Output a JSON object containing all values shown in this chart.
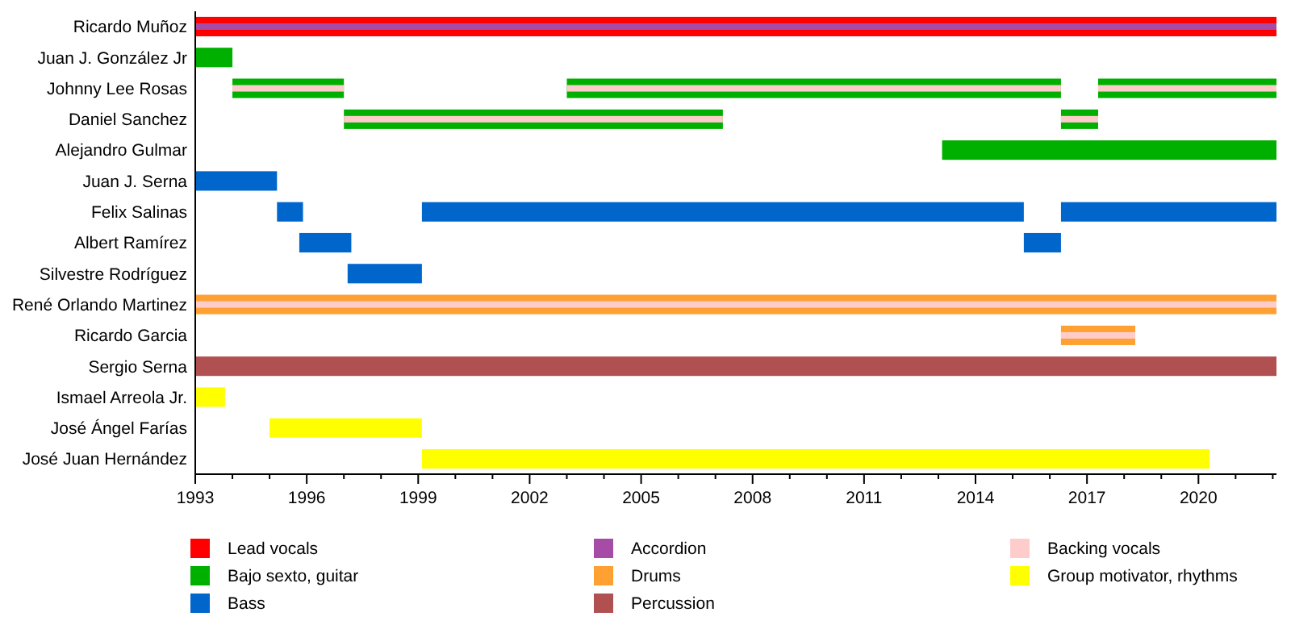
{
  "chart_data": {
    "type": "bar",
    "orientation": "horizontal",
    "categories": [
      "Ricardo Muñoz",
      "Juan J. González Jr",
      "Johnny Lee Rosas",
      "Daniel Sanchez",
      "Alejandro Gulmar",
      "Juan J. Serna",
      "Felix Salinas",
      "Albert Ramírez",
      "Silvestre Rodríguez",
      "René Orlando Martinez",
      "Ricardo Garcia",
      "Sergio Serna",
      "Ismael Arreola Jr.",
      "José Ángel Farías",
      "José Juan Hernández"
    ],
    "xlim": [
      1993,
      2022.1
    ],
    "xticks": [
      1993,
      {
        "value": 1994,
        "label": null
      },
      {
        "value": 1995,
        "label": null
      },
      1996,
      {
        "value": 1997,
        "label": null
      },
      {
        "value": 1998,
        "label": null
      },
      1999,
      {
        "value": 2000,
        "label": null
      },
      {
        "value": 2001,
        "label": null
      },
      2002,
      {
        "value": 2003,
        "label": null
      },
      {
        "value": 2004,
        "label": null
      },
      2005,
      {
        "value": 2006,
        "label": null
      },
      {
        "value": 2007,
        "label": null
      },
      2008,
      {
        "value": 2009,
        "label": null
      },
      {
        "value": 2010,
        "label": null
      },
      2011,
      {
        "value": 2012,
        "label": null
      },
      {
        "value": 2013,
        "label": null
      },
      2014,
      {
        "value": 2015,
        "label": null
      },
      {
        "value": 2016,
        "label": null
      },
      2017,
      {
        "value": 2018,
        "label": null
      },
      {
        "value": 2019,
        "label": null
      },
      2020,
      {
        "value": 2021,
        "label": null
      },
      {
        "value": 2022,
        "label": null
      }
    ],
    "legend": "bottom",
    "series": [
      {
        "name": "Lead vocals",
        "color": "#ff0000",
        "base": [
          1993,
          null,
          null,
          null,
          null,
          null,
          null,
          null,
          null,
          null,
          null,
          null,
          null,
          null,
          null
        ],
        "values": [
          29.1,
          null,
          null,
          null,
          null,
          null,
          null,
          null,
          null,
          null,
          null,
          null,
          null,
          null,
          null
        ]
      },
      {
        "name": "Bajo sexto, guitar",
        "color": "#00b000",
        "base": [
          null,
          1993,
          1994,
          1997,
          2013.1,
          null,
          null,
          null,
          null,
          null,
          null,
          null,
          null,
          null,
          null
        ],
        "values": [
          null,
          1.0,
          3.0,
          10.2,
          9.0,
          null,
          null,
          null,
          null,
          null,
          null,
          null,
          null,
          null,
          null
        ]
      },
      {
        "color": "#00b000",
        "base": [
          null,
          null,
          2003,
          2016.3,
          null,
          null,
          null,
          null,
          null,
          null,
          null,
          null,
          null,
          null,
          null
        ],
        "values": [
          null,
          null,
          13.3,
          1.0,
          null,
          null,
          null,
          null,
          null,
          null,
          null,
          null,
          null,
          null,
          null
        ]
      },
      {
        "color": "#00b000",
        "base": [
          null,
          null,
          2017.3,
          null,
          null,
          null,
          null,
          null,
          null,
          null,
          null,
          null,
          null,
          null,
          null
        ],
        "values": [
          null,
          null,
          4.8,
          null,
          null,
          null,
          null,
          null,
          null,
          null,
          null,
          null,
          null,
          null,
          null
        ]
      },
      {
        "name": "Bass",
        "color": "#0066cc",
        "base": [
          null,
          null,
          null,
          null,
          null,
          1993,
          1995.2,
          1995.8,
          1997.1,
          null,
          null,
          null,
          null,
          null,
          null
        ],
        "values": [
          null,
          null,
          null,
          null,
          null,
          2.2,
          0.7,
          1.4,
          2.0,
          null,
          null,
          null,
          null,
          null,
          null
        ]
      },
      {
        "color": "#0066cc",
        "base": [
          null,
          null,
          null,
          null,
          null,
          null,
          1999.1,
          2015.3,
          null,
          null,
          null,
          null,
          null,
          null,
          null
        ],
        "values": [
          null,
          null,
          null,
          null,
          null,
          null,
          16.2,
          1.0,
          null,
          null,
          null,
          null,
          null,
          null,
          null
        ]
      },
      {
        "color": "#0066cc",
        "base": [
          null,
          null,
          null,
          null,
          null,
          null,
          2016.3,
          null,
          null,
          null,
          null,
          null,
          null,
          null,
          null
        ],
        "values": [
          null,
          null,
          null,
          null,
          null,
          null,
          5.8,
          null,
          null,
          null,
          null,
          null,
          null,
          null,
          null
        ]
      },
      {
        "name": "Accordion",
        "color": "#a64ca6",
        "base": [
          1993,
          null,
          null,
          null,
          null,
          null,
          null,
          null,
          null,
          null,
          null,
          null,
          null,
          null,
          null
        ],
        "values": [
          29.1,
          null,
          null,
          null,
          null,
          null,
          null,
          null,
          null,
          null,
          null,
          null,
          null,
          null,
          null
        ]
      },
      {
        "name": "Drums",
        "color": "#ffa033",
        "base": [
          null,
          null,
          null,
          null,
          null,
          null,
          null,
          null,
          null,
          1993,
          2016.3,
          null,
          null,
          null,
          null
        ],
        "values": [
          null,
          null,
          null,
          null,
          null,
          null,
          null,
          null,
          null,
          29.1,
          2.0,
          null,
          null,
          null,
          null
        ]
      },
      {
        "name": "Percussion",
        "color": "#b05050",
        "base": [
          null,
          null,
          null,
          null,
          null,
          null,
          null,
          null,
          null,
          null,
          null,
          1993,
          null,
          null,
          null
        ],
        "values": [
          null,
          null,
          null,
          null,
          null,
          null,
          null,
          null,
          null,
          null,
          null,
          29.1,
          null,
          null,
          null
        ]
      },
      {
        "name": "Backing vocals",
        "color": "#ffcccc",
        "base": [
          null,
          null,
          1994,
          1997,
          null,
          null,
          null,
          null,
          null,
          1993,
          2016.3,
          null,
          null,
          null,
          null
        ],
        "values": [
          null,
          null,
          3.0,
          10.2,
          null,
          null,
          null,
          null,
          null,
          29.1,
          2.0,
          null,
          null,
          null,
          null
        ]
      },
      {
        "color": "#ffcccc",
        "base": [
          null,
          null,
          2003,
          2016.3,
          null,
          null,
          null,
          null,
          null,
          null,
          null,
          null,
          null,
          null,
          null
        ],
        "values": [
          null,
          null,
          13.3,
          1.0,
          null,
          null,
          null,
          null,
          null,
          null,
          null,
          null,
          null,
          null,
          null
        ]
      },
      {
        "color": "#ffcccc",
        "base": [
          null,
          null,
          2017.3,
          null,
          null,
          null,
          null,
          null,
          null,
          null,
          null,
          null,
          null,
          null,
          null
        ],
        "values": [
          null,
          null,
          4.8,
          null,
          null,
          null,
          null,
          null,
          null,
          null,
          null,
          null,
          null,
          null,
          null
        ]
      },
      {
        "name": "Group motivator, rhythms",
        "color": "#ffff00",
        "base": [
          null,
          null,
          null,
          null,
          null,
          null,
          null,
          null,
          null,
          null,
          null,
          null,
          1993,
          1995,
          1999.1
        ],
        "values": [
          null,
          null,
          null,
          null,
          null,
          null,
          null,
          null,
          null,
          null,
          null,
          null,
          0.8,
          4.1,
          21.2
        ]
      }
    ]
  }
}
